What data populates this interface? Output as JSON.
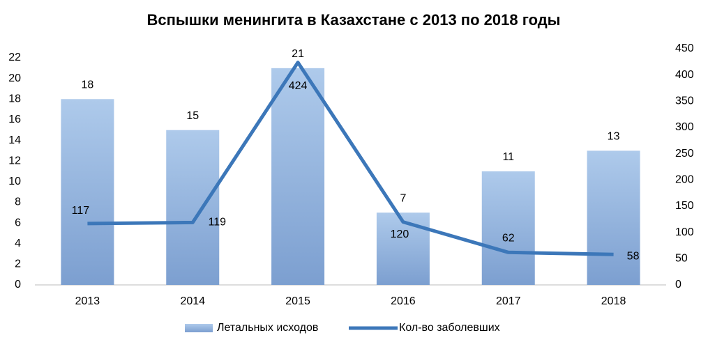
{
  "chart_data": {
    "type": "bar-line",
    "title": "Вспышки менингита в Казахстане с 2013 по 2018 годы",
    "categories": [
      "2013",
      "2014",
      "2015",
      "2016",
      "2017",
      "2018"
    ],
    "series": [
      {
        "name": "Летальных исходов",
        "type": "bar",
        "color": "#95b3de",
        "values": [
          18,
          15,
          21,
          7,
          11,
          13
        ]
      },
      {
        "name": "Кол-во заболевших",
        "type": "line",
        "color": "#3c77b9",
        "axis": "y2",
        "values": [
          117,
          119,
          424,
          120,
          62,
          58
        ]
      }
    ],
    "ylim": [
      0,
      22
    ],
    "yticks": [
      0,
      2,
      4,
      6,
      8,
      10,
      12,
      14,
      16,
      18,
      20,
      22
    ],
    "y2lim": [
      0,
      450
    ],
    "y2ticks": [
      0,
      50,
      100,
      150,
      200,
      250,
      300,
      350,
      400,
      450
    ],
    "legend": "bottom"
  }
}
